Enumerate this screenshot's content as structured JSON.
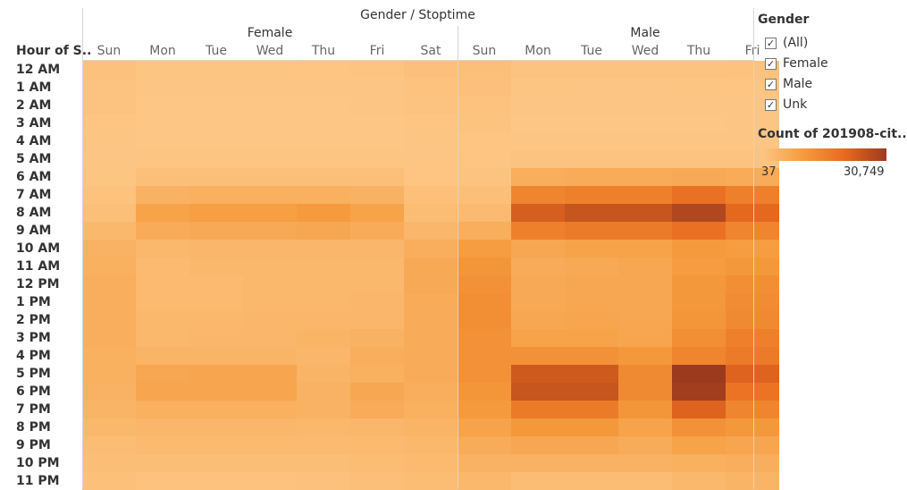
{
  "header": {
    "title": "Gender / Stoptime",
    "row_header": "Hour of S..",
    "groups": [
      "Female",
      "Male"
    ]
  },
  "legend": {
    "title": "Gender",
    "items": [
      {
        "label": "(All)",
        "checked": true
      },
      {
        "label": "Female",
        "checked": true
      },
      {
        "label": "Male",
        "checked": true
      },
      {
        "label": "Unk",
        "checked": true
      }
    ],
    "checkmark": "✓"
  },
  "color_legend": {
    "title": "Count of 201908-cit..",
    "min_label": "37",
    "max_label": "30,749",
    "min": 37,
    "max": 30749,
    "colors": [
      "#fdc685",
      "#f59c3e",
      "#e86a1e",
      "#9c3a1e"
    ]
  },
  "chart_data": {
    "type": "heatmap",
    "title": "Gender / Stoptime",
    "row_label": "Hour of S..",
    "rows": [
      "12 AM",
      "1 AM",
      "2 AM",
      "3 AM",
      "4 AM",
      "5 AM",
      "6 AM",
      "7 AM",
      "8 AM",
      "9 AM",
      "10 AM",
      "11 AM",
      "12 PM",
      "1 PM",
      "2 PM",
      "3 PM",
      "4 PM",
      "5 PM",
      "6 PM",
      "7 PM",
      "8 PM",
      "9 PM",
      "10 PM",
      "11 PM"
    ],
    "columns": [
      {
        "group": "Female",
        "day": "Sun"
      },
      {
        "group": "Female",
        "day": "Mon"
      },
      {
        "group": "Female",
        "day": "Tue"
      },
      {
        "group": "Female",
        "day": "Wed"
      },
      {
        "group": "Female",
        "day": "Thu"
      },
      {
        "group": "Female",
        "day": "Fri"
      },
      {
        "group": "Female",
        "day": "Sat"
      },
      {
        "group": "Male",
        "day": "Sun"
      },
      {
        "group": "Male",
        "day": "Mon"
      },
      {
        "group": "Male",
        "day": "Tue"
      },
      {
        "group": "Male",
        "day": "Wed"
      },
      {
        "group": "Male",
        "day": "Thu"
      },
      {
        "group": "Male",
        "day": "Fri"
      }
    ],
    "values": [
      [
        1200,
        400,
        400,
        400,
        500,
        600,
        1400,
        1800,
        700,
        700,
        700,
        800,
        1000
      ],
      [
        900,
        200,
        200,
        200,
        250,
        300,
        1000,
        1400,
        400,
        350,
        350,
        400,
        500
      ],
      [
        700,
        120,
        120,
        120,
        150,
        200,
        700,
        1000,
        250,
        250,
        250,
        250,
        300
      ],
      [
        500,
        80,
        80,
        80,
        90,
        120,
        500,
        700,
        150,
        150,
        150,
        150,
        200
      ],
      [
        300,
        100,
        100,
        100,
        110,
        120,
        300,
        450,
        200,
        200,
        200,
        200,
        220
      ],
      [
        200,
        400,
        400,
        400,
        400,
        400,
        250,
        350,
        700,
        700,
        700,
        700,
        700
      ],
      [
        400,
        1700,
        1800,
        1800,
        1800,
        1700,
        500,
        800,
        6000,
        6500,
        6500,
        7000,
        6500
      ],
      [
        1000,
        5000,
        5500,
        5500,
        5500,
        5000,
        1500,
        1800,
        15000,
        16000,
        16000,
        19000,
        16000
      ],
      [
        1800,
        8500,
        9500,
        9500,
        10500,
        8500,
        2500,
        3000,
        23000,
        25000,
        25000,
        28000,
        21000
      ],
      [
        3500,
        6500,
        7000,
        7000,
        7500,
        6500,
        4000,
        6000,
        16000,
        17000,
        17000,
        19000,
        15000
      ],
      [
        5000,
        3500,
        4000,
        4000,
        4000,
        4000,
        6000,
        10000,
        7500,
        8500,
        8500,
        10500,
        10000
      ],
      [
        5500,
        3000,
        3500,
        3500,
        3500,
        3500,
        7000,
        11500,
        6500,
        7000,
        7500,
        10000,
        11000
      ],
      [
        6000,
        3000,
        3000,
        3500,
        3500,
        3500,
        7000,
        12500,
        7000,
        7500,
        7500,
        11000,
        13000
      ],
      [
        6000,
        3000,
        3000,
        3500,
        3500,
        4000,
        6500,
        13000,
        7000,
        7500,
        7500,
        11000,
        13500
      ],
      [
        6000,
        3500,
        3500,
        4000,
        4000,
        4000,
        6500,
        13000,
        7500,
        8000,
        7500,
        11500,
        14000
      ],
      [
        6000,
        3500,
        4000,
        4000,
        4500,
        5000,
        6500,
        12500,
        8500,
        8500,
        8000,
        13000,
        16000
      ],
      [
        5500,
        4500,
        4500,
        4500,
        4000,
        6000,
        6500,
        12500,
        12500,
        12500,
        11000,
        15000,
        17000
      ],
      [
        5500,
        7500,
        8000,
        8000,
        4500,
        5500,
        6500,
        12500,
        24000,
        24000,
        14000,
        30749,
        22000
      ],
      [
        5000,
        8000,
        8000,
        8000,
        5000,
        7500,
        6000,
        11500,
        25000,
        25000,
        14000,
        30000,
        18500
      ],
      [
        4500,
        5500,
        5500,
        5500,
        5000,
        6500,
        5500,
        10500,
        17000,
        17000,
        11500,
        22000,
        15000
      ],
      [
        3500,
        4000,
        4000,
        4000,
        3500,
        4000,
        4500,
        8500,
        11000,
        11000,
        8500,
        12500,
        11000
      ],
      [
        2500,
        3000,
        3000,
        3000,
        3000,
        3000,
        3500,
        6500,
        7500,
        7500,
        6500,
        8500,
        8000
      ],
      [
        2000,
        2000,
        2000,
        2000,
        2000,
        2500,
        3000,
        5000,
        5000,
        5000,
        5000,
        5500,
        6000
      ],
      [
        1500,
        1000,
        1000,
        1000,
        1200,
        1800,
        2500,
        3500,
        2500,
        2500,
        2500,
        3500,
        4500
      ]
    ],
    "color_range": [
      37,
      30749
    ],
    "legend_placement": "right"
  }
}
